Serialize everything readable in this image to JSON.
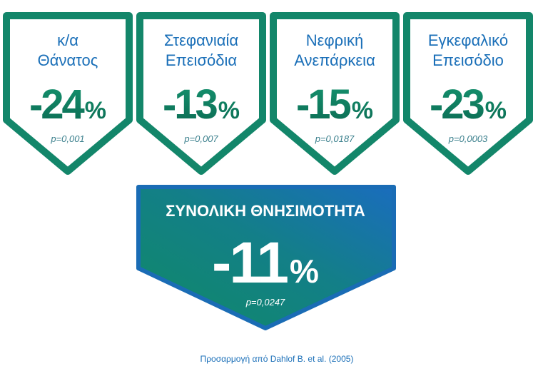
{
  "cards": [
    {
      "title": [
        "κ/α",
        "Θάνατος"
      ],
      "value": -24,
      "unit": "%",
      "p": "p=0,001"
    },
    {
      "title": [
        "Στεφανιαία",
        "Επεισόδια"
      ],
      "value": -13,
      "unit": "%",
      "p": "p=0,007"
    },
    {
      "title": [
        "Νεφρική",
        "Ανεπάρκεια"
      ],
      "value": -15,
      "unit": "%",
      "p": "p=0,0187"
    },
    {
      "title": [
        "Εγκεφαλικό",
        "Επεισόδιο"
      ],
      "value": -23,
      "unit": "%",
      "p": "p=0,0003"
    }
  ],
  "total": {
    "title": "ΣΥΝΟΛΙΚΗ ΘΝΗΣΙΜΟΤΗΤΑ",
    "value": -11,
    "unit": "%",
    "p": "p=0,0247"
  },
  "footer": "Προσαρμογή  από Dahlof B. et al. (2005)"
}
